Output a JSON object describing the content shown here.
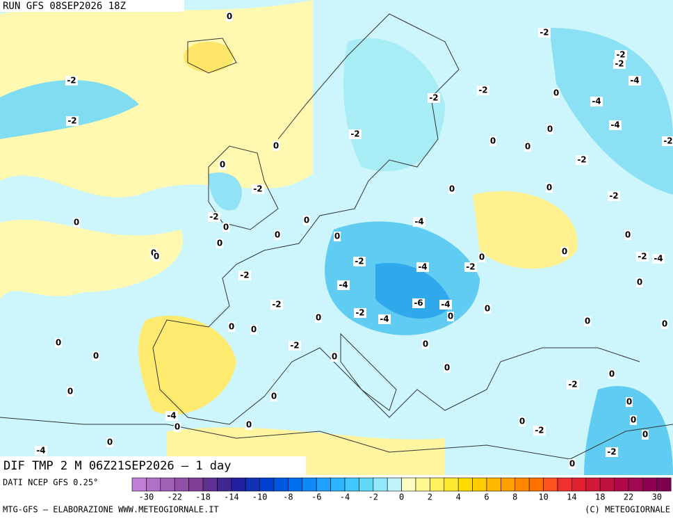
{
  "header": {
    "run": "RUN GFS 08SEP2026 18Z"
  },
  "map": {
    "title": "DIF TMP 2 M 06Z21SEP2026 — 1 day",
    "contour_labels": [
      0,
      -2,
      -2,
      -2,
      -2,
      -4,
      -2,
      -2,
      0,
      -4,
      -2,
      -4,
      0,
      -2,
      0,
      0,
      0,
      -2,
      -2,
      0,
      -2,
      0,
      0,
      -2,
      0,
      -2,
      0,
      -4,
      0,
      0,
      0,
      0,
      0,
      0,
      0,
      -2,
      0,
      -2,
      -4,
      -4,
      -2,
      0,
      -2,
      -4,
      0,
      -2,
      -6,
      -4,
      0,
      -2,
      0,
      -4,
      0,
      0,
      0,
      0,
      0,
      0,
      -2,
      0,
      0,
      0,
      0,
      0,
      0,
      -2,
      0,
      0,
      -4,
      0,
      0,
      0,
      0,
      -2,
      0,
      0,
      -4,
      -2,
      0
    ]
  },
  "legend": {
    "source": "DATI NCEP GFS 0.25°",
    "colors": [
      "#c080d8",
      "#b070c8",
      "#a060b8",
      "#9050a8",
      "#804098",
      "#603090",
      "#402890",
      "#2020a0",
      "#1030b8",
      "#0040d0",
      "#0058e0",
      "#0070f0",
      "#1088f8",
      "#20a0ff",
      "#30b4ff",
      "#40c8ff",
      "#60d8f8",
      "#90e8f8",
      "#c0f4fc",
      "#fffcc0",
      "#fff890",
      "#fff060",
      "#ffe830",
      "#ffdc00",
      "#ffcc00",
      "#ffb800",
      "#ffa000",
      "#ff8800",
      "#ff7000",
      "#ff5020",
      "#f03030",
      "#e02030",
      "#d01838",
      "#c01040",
      "#b00848",
      "#a00850",
      "#900050",
      "#800050"
    ],
    "ticks": [
      -30,
      -22,
      -18,
      -14,
      -10,
      -8,
      -6,
      -4,
      -2,
      0,
      2,
      4,
      6,
      8,
      10,
      14,
      18,
      22,
      30
    ]
  },
  "footer": {
    "left": "MTG-GFS — ELABORAZIONE WWW.METEOGIORNALE.IT",
    "right": "(C) METEOGIORNALE"
  }
}
